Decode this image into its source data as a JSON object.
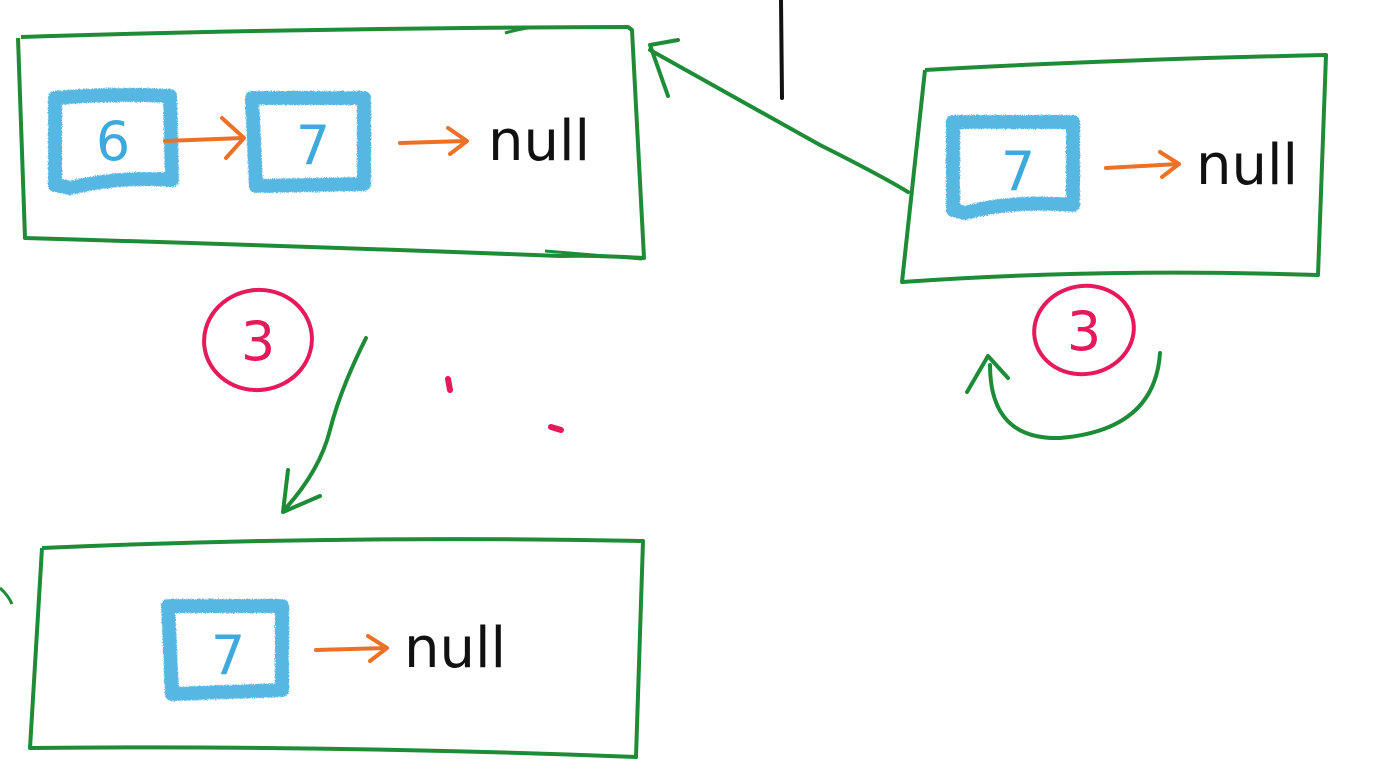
{
  "colors": {
    "frame": "#1e8b37",
    "node": "#45b0e0",
    "node_text": "#3fa9dc",
    "pointer": "#ec7127",
    "null_text": "#111111",
    "annotation": "#e6195b"
  },
  "top_left_list": {
    "node_1": "6",
    "node_2": "7",
    "terminal": "null"
  },
  "top_right_list": {
    "node_1": "7",
    "terminal": "null"
  },
  "bottom_list": {
    "node_1": "7",
    "terminal": "null"
  },
  "step_labels": {
    "left": "3",
    "right": "3"
  }
}
